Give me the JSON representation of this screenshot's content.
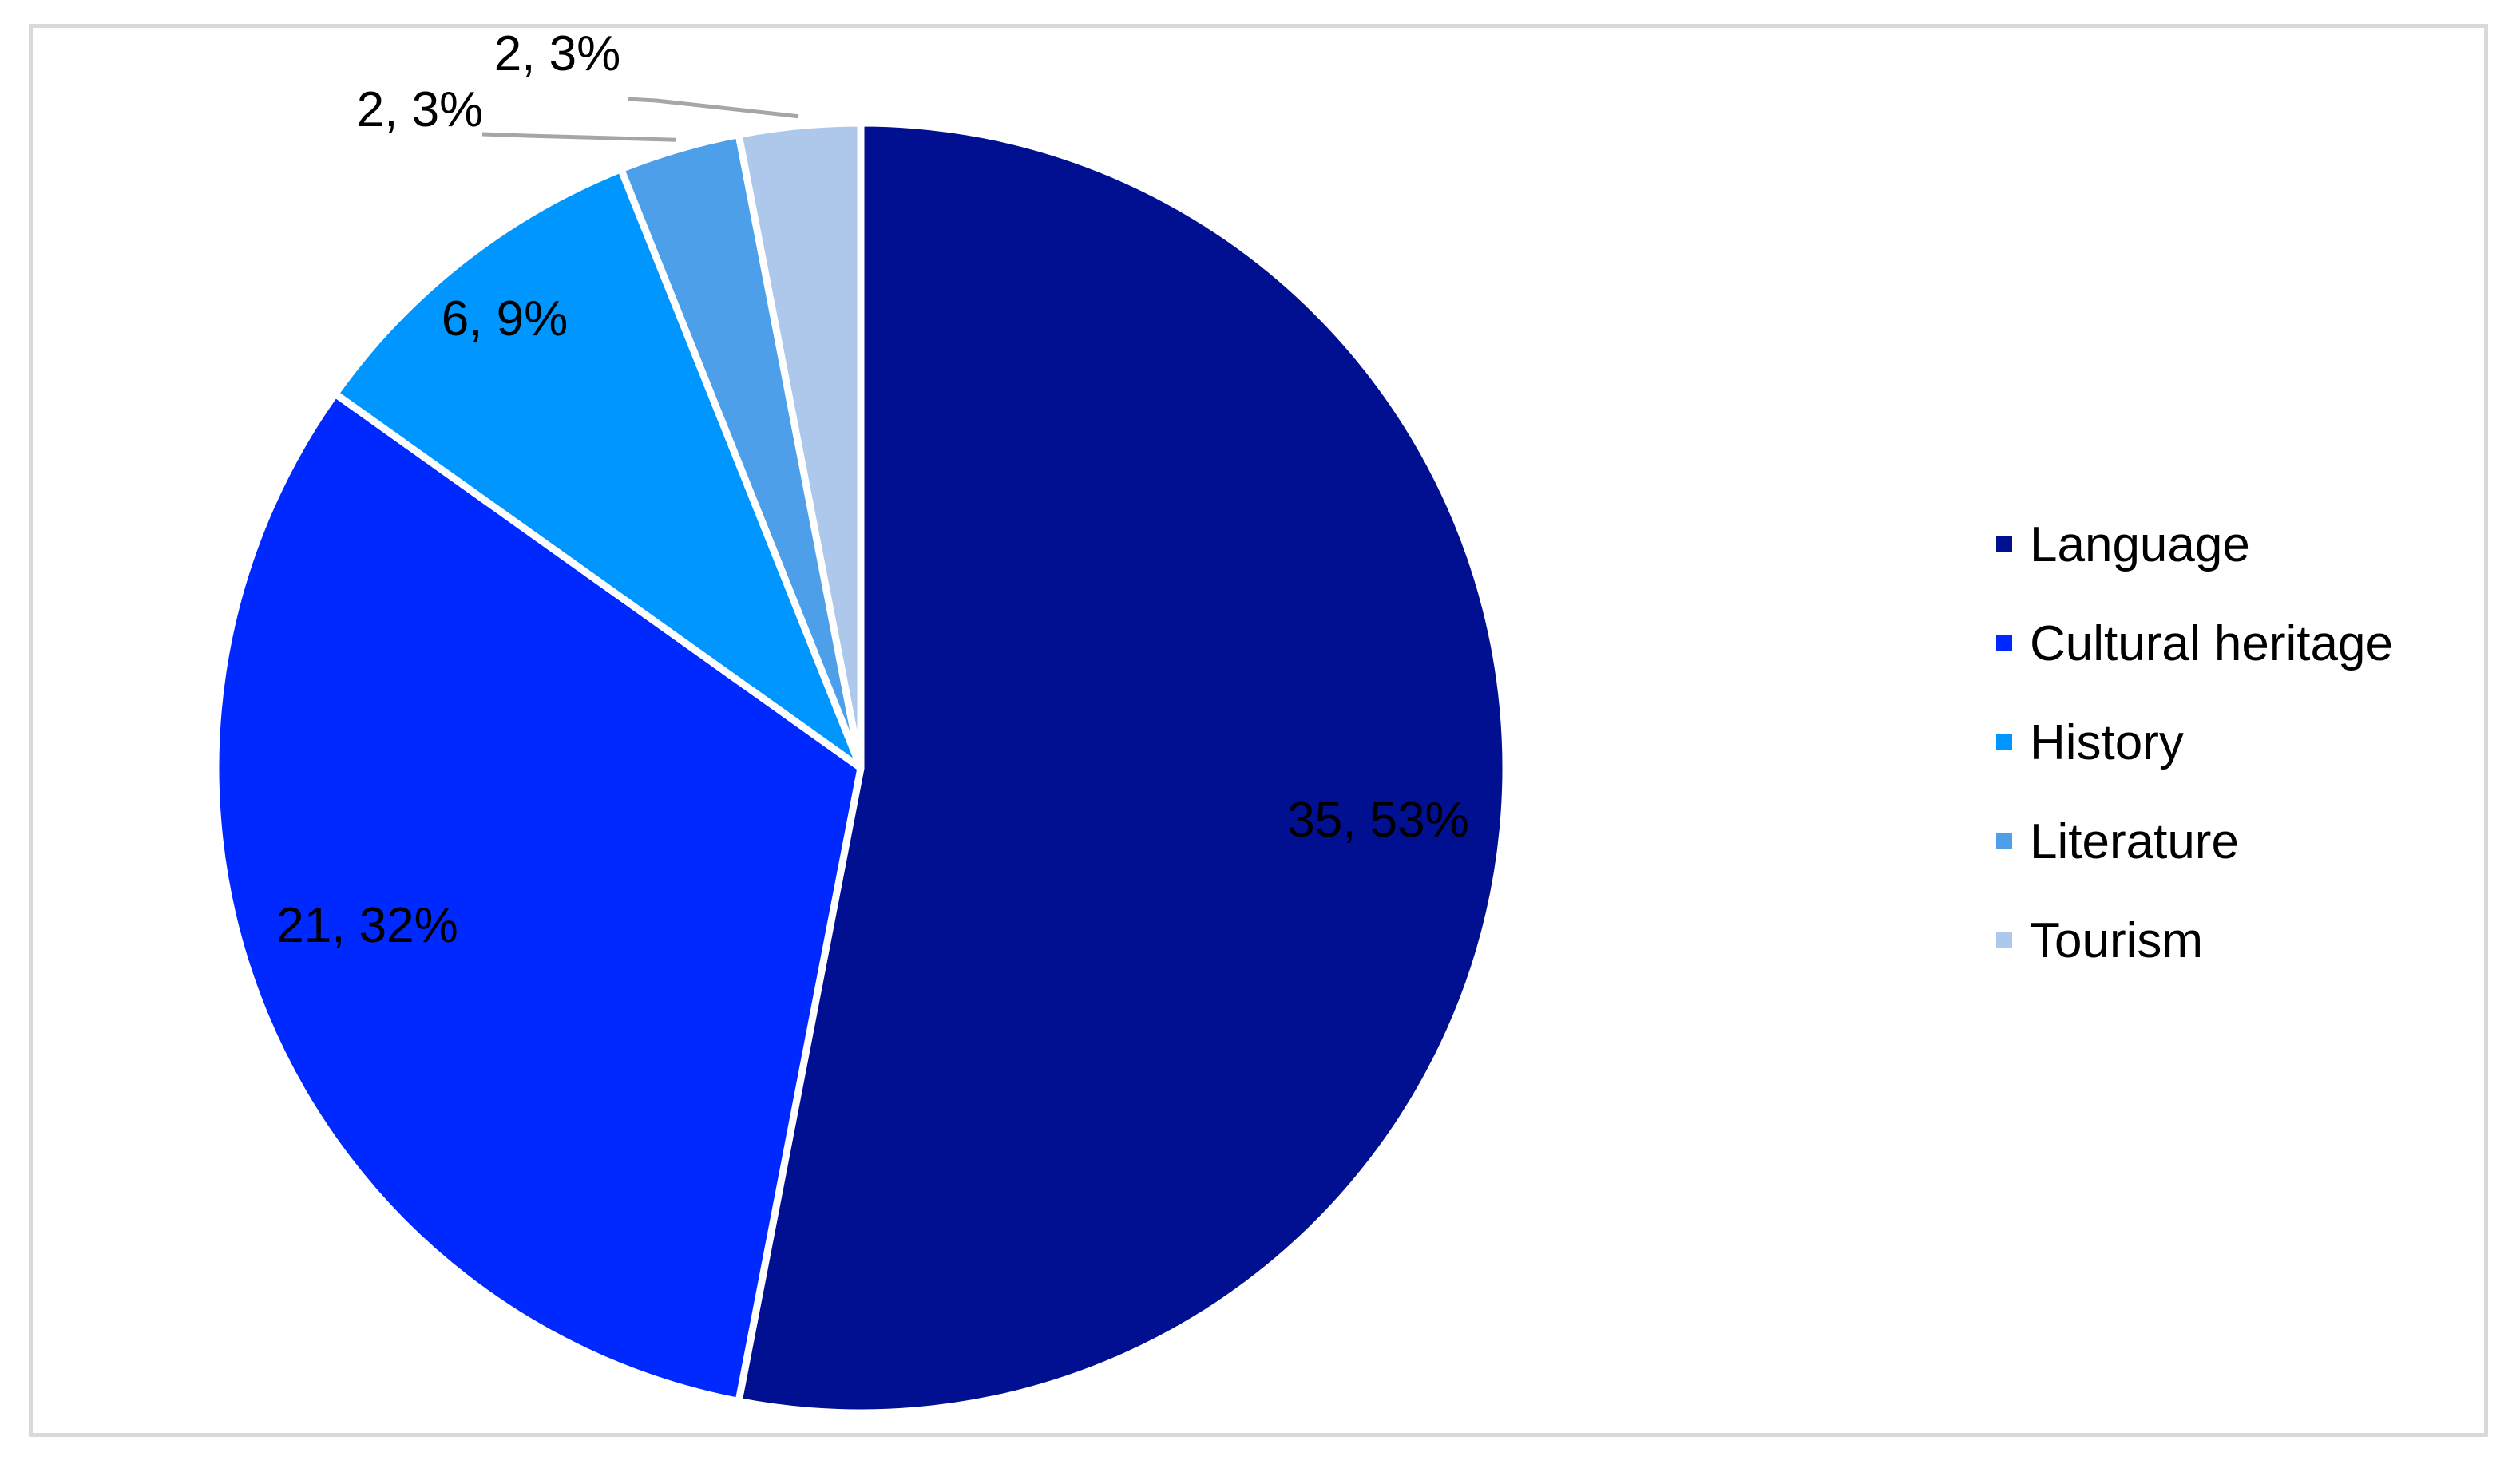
{
  "chart_data": {
    "type": "pie",
    "title": "",
    "categories": [
      "Language",
      "Cultural heritage",
      "History",
      "Literature",
      "Tourism"
    ],
    "values": [
      35,
      21,
      6,
      2,
      2
    ],
    "percentages": [
      53,
      32,
      9,
      3,
      3
    ],
    "data_labels": [
      "35, 53%",
      "21, 32%",
      "6, 9%",
      "2, 3%",
      "2, 3%"
    ],
    "colors": [
      "#001090",
      "#0029FF",
      "#0096FF",
      "#4D9FEA",
      "#ADC8EB"
    ],
    "legend_position": "right",
    "start_angle": "12 o'clock, clockwise"
  },
  "legend": {
    "items": [
      {
        "label": "Language",
        "color": "#001090"
      },
      {
        "label": "Cultural heritage",
        "color": "#0029FF"
      },
      {
        "label": "History",
        "color": "#0096FF"
      },
      {
        "label": "Literature",
        "color": "#4D9FEA"
      },
      {
        "label": "Tourism",
        "color": "#ADC8EB"
      }
    ]
  }
}
